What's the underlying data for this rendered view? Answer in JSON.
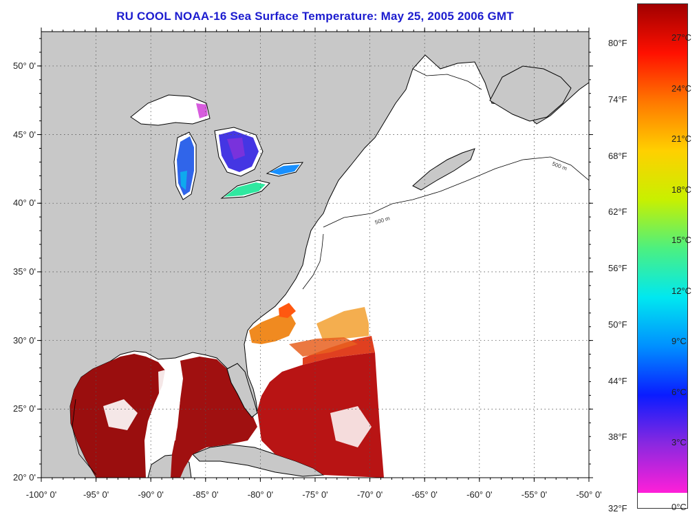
{
  "title": "RU COOL  NOAA-16  Sea Surface Temperature:  May 25, 2005 2006 GMT",
  "map": {
    "lon_range": [
      -100,
      -50
    ],
    "lat_range": [
      20,
      52.5
    ],
    "lon_ticks": [
      "-100° 0'",
      "-95° 0'",
      "-90° 0'",
      "-85° 0'",
      "-80° 0'",
      "-75° 0'",
      "-70° 0'",
      "-65° 0'",
      "-60° 0'",
      "-55° 0'",
      "-50° 0'"
    ],
    "lat_ticks": [
      "20° 0'",
      "25° 0'",
      "30° 0'",
      "35° 0'",
      "40° 0'",
      "45° 0'",
      "50° 0'"
    ],
    "land_color": "#c8c8c8",
    "ocean_nodata_color": "#ffffff",
    "grid": "dotted",
    "isobath_label": "500 m"
  },
  "colorbar": {
    "celsius_ticks": [
      "27°C",
      "24°C",
      "21°C",
      "18°C",
      "15°C",
      "12°C",
      "9°C",
      "6°C",
      "3°C",
      "0°C"
    ],
    "fahrenheit_ticks": [
      "80°F",
      "74°F",
      "68°F",
      "62°F",
      "56°F",
      "50°F",
      "44°F",
      "38°F",
      "32°F"
    ],
    "range_c": [
      0,
      29
    ],
    "colors": [
      "#ff1fd8",
      "#8a28e0",
      "#0a1cff",
      "#0090ff",
      "#00e8f0",
      "#4cf080",
      "#c8f000",
      "#ffd000",
      "#ff7800",
      "#ff1000",
      "#a00000"
    ]
  }
}
